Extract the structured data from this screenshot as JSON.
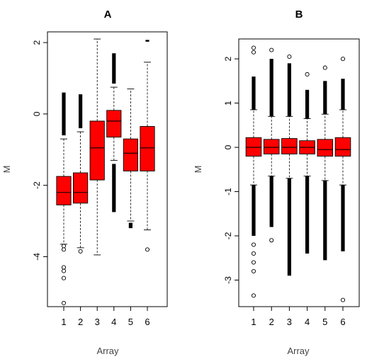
{
  "chart_data": [
    {
      "type": "boxplot",
      "title": "A",
      "xlabel": "Array",
      "ylabel": "M",
      "categories": [
        "1",
        "2",
        "3",
        "4",
        "5",
        "6"
      ],
      "ylim": [
        -5.4,
        2.3
      ],
      "yticks": [
        2,
        0,
        -2,
        -4
      ],
      "ytick_labels": [
        "2",
        "0",
        "-2",
        "-4"
      ],
      "box_color": "#ff0000",
      "boxes": [
        {
          "q1": -2.55,
          "median": -2.2,
          "q3": -1.75,
          "whisker_low": -3.65,
          "whisker_high": -0.7,
          "outliers_low": [
            -3.7,
            -3.8,
            -4.3,
            -4.4,
            -4.6,
            -5.3
          ],
          "outlier_band_low": null,
          "outlier_band_high": [
            -0.6,
            0.6
          ]
        },
        {
          "q1": -2.5,
          "median": -2.2,
          "q3": -1.65,
          "whisker_low": -3.75,
          "whisker_high": -0.5,
          "outliers_low": [
            -3.85
          ],
          "outlier_band_low": null,
          "outlier_band_high": [
            -0.4,
            0.55
          ]
        },
        {
          "q1": -1.85,
          "median": -0.95,
          "q3": -0.2,
          "whisker_low": -3.95,
          "whisker_high": 2.1,
          "outliers_low": [],
          "outlier_band_low": null,
          "outlier_band_high": null
        },
        {
          "q1": -0.65,
          "median": -0.2,
          "q3": 0.1,
          "whisker_low": -1.3,
          "whisker_high": 0.75,
          "outliers_low": [],
          "outlier_band_low": [
            -2.75,
            -1.4
          ],
          "outlier_band_high": [
            0.85,
            1.7
          ]
        },
        {
          "q1": -1.6,
          "median": -1.1,
          "q3": -0.7,
          "whisker_low": -3.0,
          "whisker_high": 0.7,
          "outliers_low": [],
          "outlier_band_low": [
            -3.2,
            -3.05
          ],
          "outlier_band_high": null
        },
        {
          "q1": -1.6,
          "median": -0.95,
          "q3": -0.35,
          "whisker_low": -3.25,
          "whisker_high": 1.45,
          "outliers_low": [
            -3.8
          ],
          "outlier_band_low": null,
          "outlier_band_high": [
            2.05,
            2.05
          ]
        }
      ]
    },
    {
      "type": "boxplot",
      "title": "B",
      "xlabel": "Array",
      "ylabel": "M",
      "categories": [
        "1",
        "2",
        "3",
        "4",
        "5",
        "6"
      ],
      "ylim": [
        -3.6,
        2.45
      ],
      "yticks": [
        2,
        1,
        0,
        -1,
        -2,
        -3
      ],
      "ytick_labels": [
        "2",
        "1",
        "0",
        "-1",
        "-2",
        "-3"
      ],
      "box_color": "#ff0000",
      "boxes": [
        {
          "q1": -0.2,
          "median": 0.0,
          "q3": 0.22,
          "whisker_low": -0.85,
          "whisker_high": 0.85,
          "outliers_low": [
            -2.2,
            -2.4,
            -2.6,
            -2.8,
            -3.35
          ],
          "outliers_high": [
            2.15,
            2.25
          ],
          "outlier_band_low": [
            -2.0,
            -0.85
          ],
          "outlier_band_high": [
            0.85,
            1.6
          ]
        },
        {
          "q1": -0.15,
          "median": 0.0,
          "q3": 0.18,
          "whisker_low": -0.65,
          "whisker_high": 0.7,
          "outliers_low": [
            -2.1
          ],
          "outliers_high": [
            2.2
          ],
          "outlier_band_low": [
            -1.8,
            -0.65
          ],
          "outlier_band_high": [
            0.7,
            2.0
          ]
        },
        {
          "q1": -0.15,
          "median": 0.0,
          "q3": 0.2,
          "whisker_low": -0.7,
          "whisker_high": 0.7,
          "outliers_low": [],
          "outliers_high": [
            2.05
          ],
          "outlier_band_low": [
            -2.9,
            -0.7
          ],
          "outlier_band_high": [
            0.7,
            1.9
          ]
        },
        {
          "q1": -0.15,
          "median": 0.0,
          "q3": 0.15,
          "whisker_low": -0.65,
          "whisker_high": 0.65,
          "outliers_low": [],
          "outliers_high": [
            1.65
          ],
          "outlier_band_low": [
            -2.4,
            -0.65
          ],
          "outlier_band_high": [
            0.65,
            1.3
          ]
        },
        {
          "q1": -0.2,
          "median": -0.05,
          "q3": 0.18,
          "whisker_low": -0.75,
          "whisker_high": 0.75,
          "outliers_low": [],
          "outliers_high": [
            1.8
          ],
          "outlier_band_low": [
            -2.55,
            -0.75
          ],
          "outlier_band_high": [
            0.75,
            1.5
          ]
        },
        {
          "q1": -0.2,
          "median": -0.05,
          "q3": 0.22,
          "whisker_low": -0.85,
          "whisker_high": 0.85,
          "outliers_low": [
            -3.45
          ],
          "outliers_high": [
            2.0
          ],
          "outlier_band_low": [
            -2.35,
            -0.85
          ],
          "outlier_band_high": [
            0.85,
            1.55
          ]
        }
      ]
    }
  ]
}
